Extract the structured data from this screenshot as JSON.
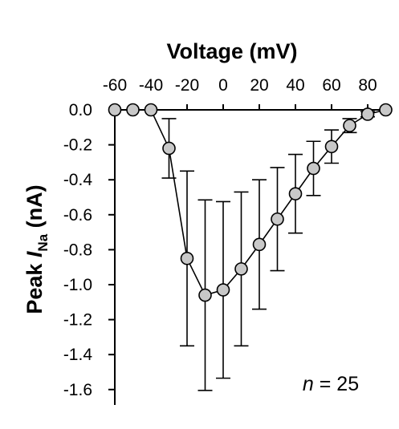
{
  "chart_data": {
    "type": "scatter",
    "xlabel": "Voltage (mV)",
    "ylabel_main": "Peak ",
    "ylabel_italic": "I",
    "ylabel_sub": "Na",
    "ylabel_unit": " (nA)",
    "xlim": [
      -60,
      90
    ],
    "ylim": [
      -1.6,
      0.0
    ],
    "x_ticks": [
      -60,
      -40,
      -20,
      0,
      20,
      40,
      60,
      80
    ],
    "x_tick_labels": [
      "-60",
      "-40",
      "-20",
      "0",
      "20",
      "40",
      "60",
      "80"
    ],
    "y_ticks": [
      0.0,
      -0.2,
      -0.4,
      -0.6,
      -0.8,
      -1.0,
      -1.2,
      -1.4,
      -1.6
    ],
    "y_tick_labels": [
      "0.0",
      "-0.2",
      "-0.4",
      "-0.6",
      "-0.8",
      "-1.0",
      "-1.2",
      "-1.4",
      "-1.6"
    ],
    "x_axis_position": "top",
    "grid": false,
    "series": [
      {
        "x": [
          -60,
          -50,
          -40,
          -30,
          -20,
          -10,
          0,
          10,
          20,
          30,
          40,
          50,
          60,
          70,
          80,
          90
        ],
        "y": [
          0.0,
          0.0,
          0.0,
          -0.22,
          -0.85,
          -1.06,
          -1.03,
          -0.91,
          -0.77,
          -0.625,
          -0.48,
          -0.335,
          -0.21,
          -0.09,
          -0.025,
          0.0
        ],
        "err": [
          0,
          0,
          0,
          0.17,
          0.5,
          0.545,
          0.505,
          0.44,
          0.37,
          0.295,
          0.225,
          0.155,
          0.095,
          0.04,
          0.015,
          0
        ]
      }
    ],
    "annotation_italic": "n",
    "annotation_rest": " = 25"
  }
}
